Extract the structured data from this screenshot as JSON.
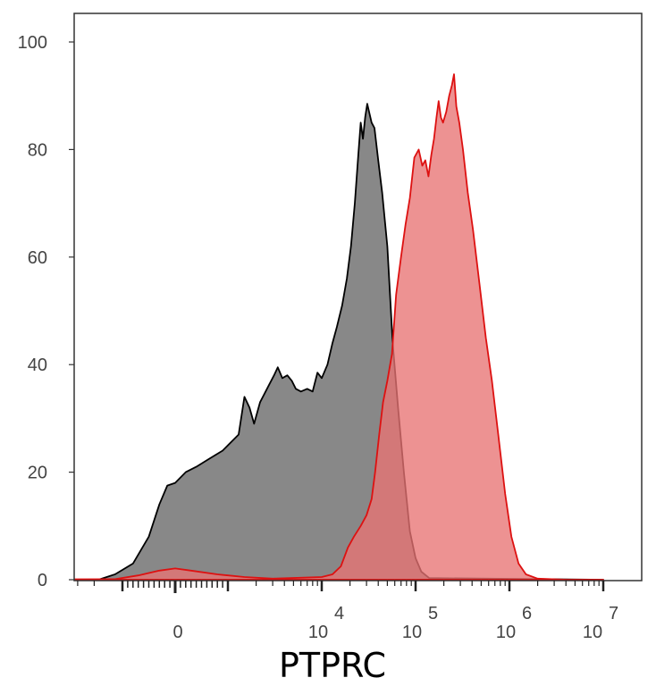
{
  "chart_data": {
    "type": "area",
    "title": "",
    "xlabel": "PTPRC",
    "ylabel": "",
    "x_scale": "biexponential",
    "ylim": [
      0,
      100
    ],
    "y_ticks": [
      0,
      20,
      40,
      60,
      80,
      100
    ],
    "x_ticks": [
      {
        "base": "0",
        "exp": ""
      },
      {
        "base": "10",
        "exp": "4"
      },
      {
        "base": "10",
        "exp": "5"
      },
      {
        "base": "10",
        "exp": "6"
      },
      {
        "base": "10",
        "exp": "7"
      }
    ],
    "grid": false,
    "legend": "none",
    "series": [
      {
        "color": "#000000",
        "fill": "#888888",
        "points": [
          [
            -100000,
            0
          ],
          [
            -1800,
            0
          ],
          [
            -1200,
            1
          ],
          [
            -800,
            3
          ],
          [
            -500,
            8
          ],
          [
            -300,
            14
          ],
          [
            -150,
            17.5
          ],
          [
            0,
            18
          ],
          [
            200,
            20
          ],
          [
            400,
            21
          ],
          [
            650,
            22.5
          ],
          [
            900,
            24
          ],
          [
            1300,
            27
          ],
          [
            1500,
            34
          ],
          [
            1700,
            32
          ],
          [
            1900,
            29
          ],
          [
            2200,
            33
          ],
          [
            2700,
            36
          ],
          [
            3100,
            38
          ],
          [
            3400,
            39.5
          ],
          [
            3800,
            37.5
          ],
          [
            4300,
            38
          ],
          [
            4800,
            37
          ],
          [
            5300,
            35.5
          ],
          [
            6000,
            35
          ],
          [
            7000,
            35.5
          ],
          [
            8000,
            35
          ],
          [
            9000,
            38.5
          ],
          [
            10000,
            37.5
          ],
          [
            11500,
            40
          ],
          [
            13000,
            44
          ],
          [
            14500,
            47
          ],
          [
            16500,
            51
          ],
          [
            18500,
            56
          ],
          [
            20500,
            62
          ],
          [
            22500,
            70
          ],
          [
            24500,
            79
          ],
          [
            26000,
            85
          ],
          [
            27500,
            82
          ],
          [
            29000,
            86
          ],
          [
            30500,
            88.5
          ],
          [
            32000,
            87
          ],
          [
            34000,
            85
          ],
          [
            36500,
            84
          ],
          [
            40000,
            78
          ],
          [
            44000,
            72
          ],
          [
            50000,
            62
          ],
          [
            57000,
            44
          ],
          [
            65000,
            32
          ],
          [
            75000,
            20
          ],
          [
            87000,
            9
          ],
          [
            100000,
            4
          ],
          [
            115000,
            1.5
          ],
          [
            140000,
            0.3
          ],
          [
            10000000,
            0
          ]
        ]
      },
      {
        "color": "#dd1111",
        "fill": "#e87373",
        "points": [
          [
            -100000,
            0
          ],
          [
            -1200,
            0.1
          ],
          [
            -700,
            0.8
          ],
          [
            -300,
            1.7
          ],
          [
            0,
            2.1
          ],
          [
            300,
            1.7
          ],
          [
            800,
            1
          ],
          [
            1500,
            0.5
          ],
          [
            3000,
            0.2
          ],
          [
            10000,
            0.5
          ],
          [
            13000,
            1
          ],
          [
            16000,
            2.5
          ],
          [
            19000,
            6
          ],
          [
            22000,
            8
          ],
          [
            26000,
            10
          ],
          [
            30000,
            12
          ],
          [
            34000,
            15
          ],
          [
            37000,
            20
          ],
          [
            41000,
            27
          ],
          [
            45000,
            33
          ],
          [
            50000,
            37
          ],
          [
            56000,
            42
          ],
          [
            62000,
            53
          ],
          [
            70000,
            60
          ],
          [
            78000,
            66
          ],
          [
            87000,
            71
          ],
          [
            97000,
            78.5
          ],
          [
            108000,
            80
          ],
          [
            118000,
            77
          ],
          [
            127000,
            78
          ],
          [
            137000,
            75
          ],
          [
            147000,
            79
          ],
          [
            157000,
            82
          ],
          [
            167000,
            86
          ],
          [
            176000,
            89
          ],
          [
            186000,
            86
          ],
          [
            196000,
            85
          ],
          [
            212000,
            87
          ],
          [
            228000,
            90
          ],
          [
            244000,
            92
          ],
          [
            257000,
            94
          ],
          [
            272000,
            88
          ],
          [
            292000,
            85
          ],
          [
            320000,
            80
          ],
          [
            360000,
            72
          ],
          [
            410000,
            65
          ],
          [
            480000,
            55
          ],
          [
            560000,
            45
          ],
          [
            650000,
            37
          ],
          [
            760000,
            27
          ],
          [
            900000,
            16
          ],
          [
            1050000,
            8
          ],
          [
            1250000,
            3
          ],
          [
            1500000,
            1
          ],
          [
            2000000,
            0.2
          ],
          [
            4000000,
            0
          ],
          [
            10000000,
            0
          ]
        ]
      }
    ]
  }
}
